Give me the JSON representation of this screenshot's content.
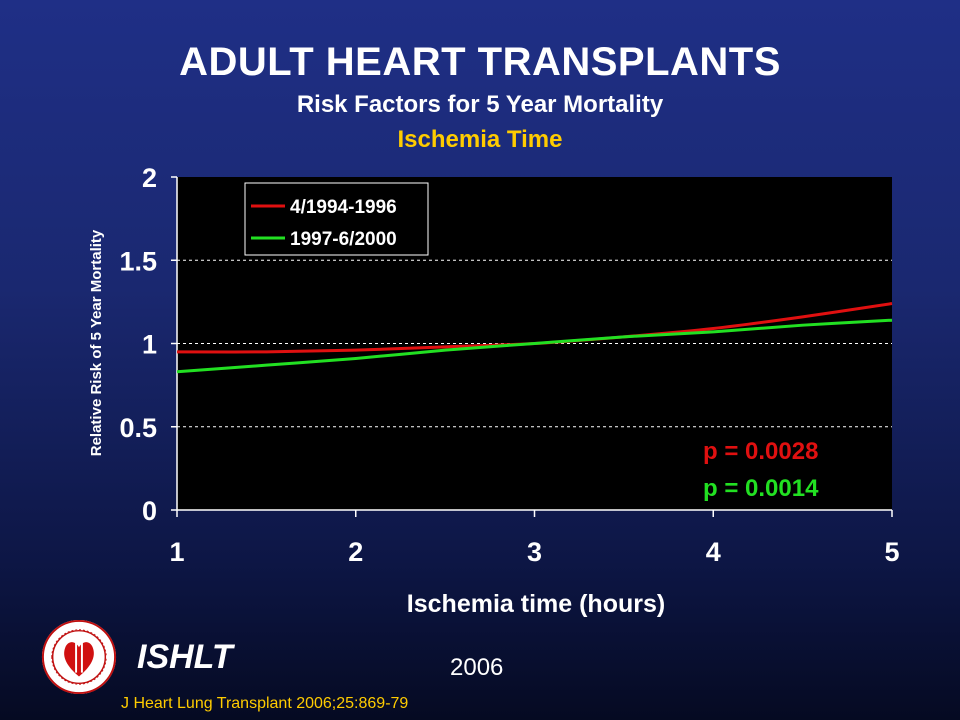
{
  "header": {
    "title": "ADULT HEART TRANSPLANTS",
    "subtitle": "Risk Factors for 5 Year Mortality",
    "subtitle2": "Ischemia Time"
  },
  "footer": {
    "brand": "ISHLT",
    "year": "2006",
    "citation": "J Heart Lung Transplant 2006;25:869-79"
  },
  "colors": {
    "background": "#1a2870",
    "plot_background": "#000000",
    "series1": "#e01010",
    "series2": "#22e022",
    "title": "#ffffff",
    "highlight": "#ffcc00"
  },
  "chart_data": {
    "type": "line",
    "xlabel": "Ischemia time (hours)",
    "ylabel": "Relative Risk of 5 Year Mortality",
    "xlim": [
      1,
      5
    ],
    "ylim": [
      0,
      2
    ],
    "xticks": [
      "1",
      "2",
      "3",
      "4",
      "5"
    ],
    "yticks": [
      "0",
      "0.5",
      "1",
      "1.5",
      "2"
    ],
    "grid": "horizontal dashed",
    "legend_position": "top-left",
    "x": [
      1,
      1.5,
      2,
      2.5,
      3,
      3.5,
      4,
      4.5,
      5
    ],
    "series": [
      {
        "name": "4/1994-1996",
        "color": "#e01010",
        "values": [
          0.95,
          0.95,
          0.96,
          0.98,
          1.0,
          1.04,
          1.09,
          1.16,
          1.24
        ]
      },
      {
        "name": "1997-6/2000",
        "color": "#22e022",
        "values": [
          0.83,
          0.87,
          0.91,
          0.96,
          1.0,
          1.04,
          1.07,
          1.11,
          1.14
        ]
      }
    ],
    "annotations": [
      {
        "text": "p = 0.0028",
        "color": "#e01010"
      },
      {
        "text": "p = 0.0014",
        "color": "#22e022"
      }
    ]
  }
}
